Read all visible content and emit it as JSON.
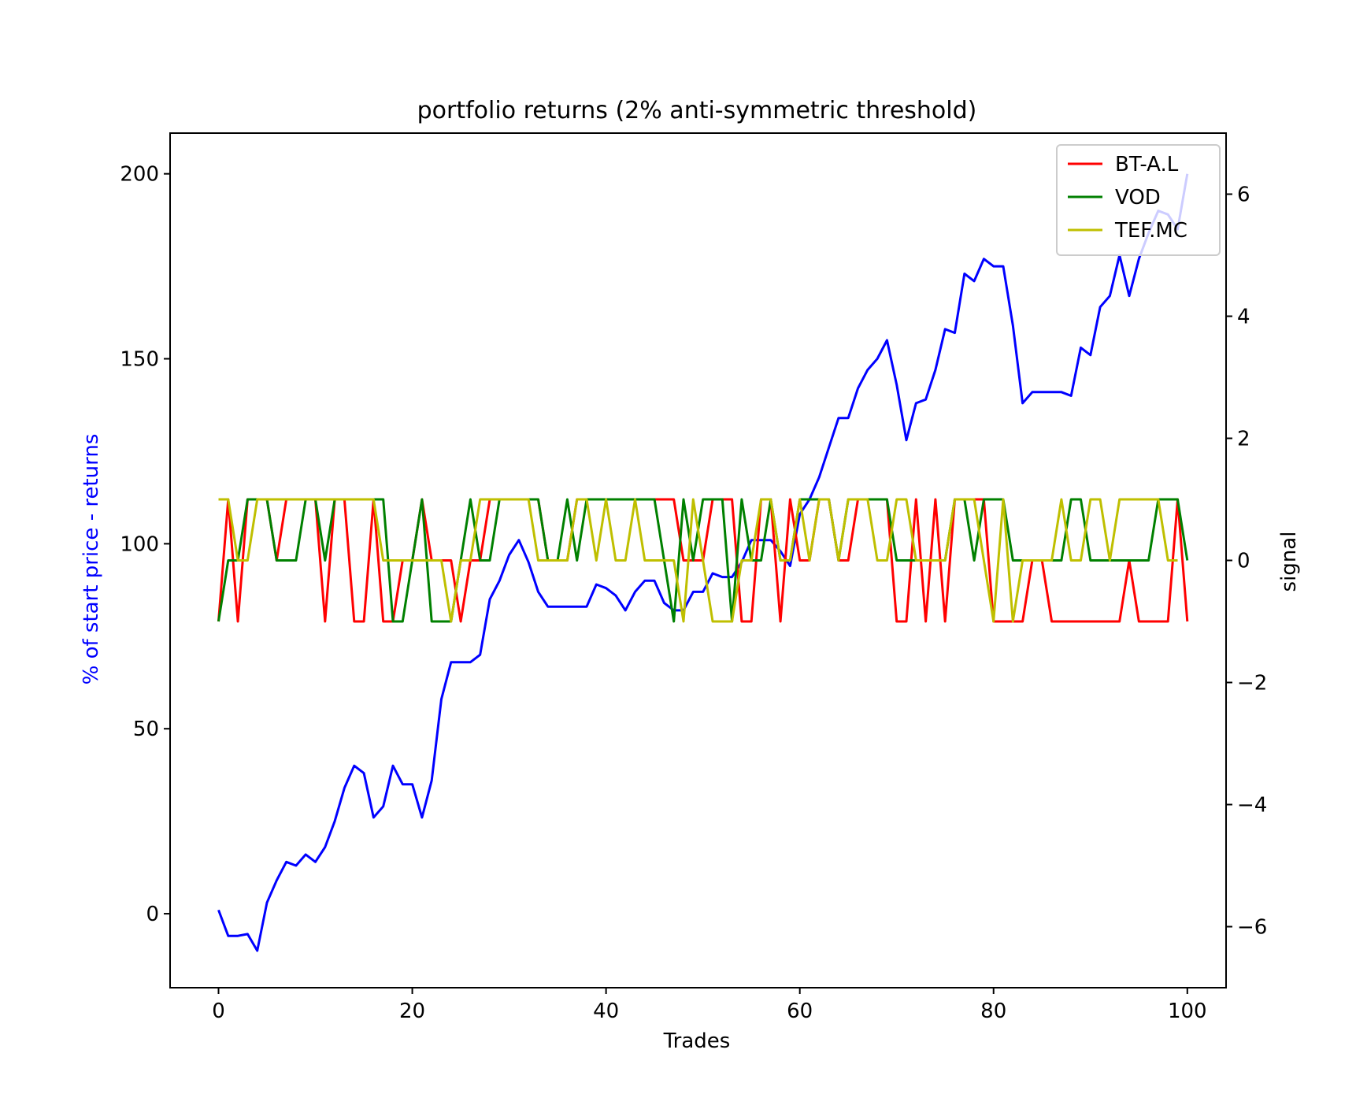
{
  "chart_data": {
    "type": "line",
    "title": "portfolio returns (2% anti-symmetric threshold)",
    "xlabel": "Trades",
    "ylabel_left": "% of start price - returns",
    "ylabel_right": "signal",
    "xlim": [
      -5,
      104
    ],
    "ylim_left": [
      -20,
      211
    ],
    "ylim_right": [
      -7,
      7
    ],
    "xticks": [
      0,
      20,
      40,
      60,
      80,
      100
    ],
    "yticks_left": [
      0,
      50,
      100,
      150,
      200
    ],
    "yticks_right": [
      -6,
      -4,
      -2,
      0,
      2,
      4,
      6
    ],
    "ytick_labels_right": [
      "−6",
      "−4",
      "−2",
      "0",
      "2",
      "4",
      "6"
    ],
    "grid": false,
    "legend_position": "upper right",
    "colors": {
      "returns": "#0000ff",
      "ylabel_left": "#0000ff",
      "axes": "#000000",
      "background": "#ffffff"
    },
    "returns": {
      "axis": "left",
      "color": "#0000ff",
      "values": [
        1,
        -6,
        -6,
        -5.5,
        -10,
        3,
        9,
        14,
        13,
        16,
        14,
        18,
        25,
        34,
        40,
        38,
        26,
        29,
        40,
        35,
        35,
        26,
        36,
        58,
        68,
        68,
        68,
        70,
        85,
        90,
        97,
        101,
        95,
        87,
        83,
        83,
        83,
        83,
        83,
        89,
        88,
        86,
        82,
        87,
        90,
        90,
        84,
        82,
        82,
        87,
        87,
        92,
        91,
        91,
        95,
        101,
        101,
        101,
        98,
        94,
        108,
        112,
        118,
        126,
        134,
        134,
        142,
        147,
        150,
        155,
        143,
        128,
        138,
        139,
        147,
        158,
        157,
        173,
        171,
        177,
        175,
        175,
        159,
        138,
        141,
        141,
        141,
        141,
        140,
        153,
        151,
        164,
        167,
        178,
        167,
        177,
        184,
        190,
        189,
        185,
        200
      ]
    },
    "series": [
      {
        "name": "BT-A.L",
        "axis": "right",
        "color": "#ff0000",
        "values": [
          -1,
          1,
          -1,
          1,
          1,
          1,
          0,
          1,
          1,
          1,
          1,
          -1,
          1,
          1,
          -1,
          -1,
          1,
          -1,
          -1,
          0,
          0,
          1,
          0,
          0,
          0,
          -1,
          0,
          0,
          1,
          1,
          1,
          1,
          1,
          1,
          0,
          0,
          0,
          1,
          1,
          1,
          1,
          1,
          1,
          1,
          1,
          1,
          1,
          1,
          0,
          0,
          0,
          1,
          1,
          1,
          -1,
          -1,
          1,
          1,
          -1,
          1,
          0,
          0,
          1,
          1,
          0,
          0,
          1,
          1,
          1,
          1,
          -1,
          -1,
          1,
          -1,
          1,
          -1,
          1,
          1,
          1,
          1,
          -1,
          -1,
          -1,
          -1,
          0,
          0,
          -1,
          -1,
          -1,
          -1,
          -1,
          -1,
          -1,
          -1,
          0,
          -1,
          -1,
          -1,
          -1,
          1,
          -1
        ]
      },
      {
        "name": "VOD",
        "axis": "right",
        "color": "#008000",
        "values": [
          -1,
          0,
          0,
          1,
          1,
          1,
          0,
          0,
          0,
          1,
          1,
          0,
          1,
          1,
          1,
          1,
          1,
          1,
          -1,
          -1,
          0,
          1,
          -1,
          -1,
          -1,
          0,
          1,
          0,
          0,
          1,
          1,
          1,
          1,
          1,
          0,
          0,
          1,
          0,
          1,
          1,
          1,
          1,
          1,
          1,
          1,
          1,
          0,
          -1,
          1,
          0,
          1,
          1,
          1,
          -1,
          1,
          0,
          0,
          1,
          0,
          0,
          1,
          1,
          1,
          1,
          0,
          1,
          1,
          1,
          1,
          1,
          0,
          0,
          0,
          0,
          0,
          0,
          1,
          1,
          0,
          1,
          1,
          1,
          0,
          0,
          0,
          0,
          0,
          0,
          1,
          1,
          0,
          0,
          0,
          0,
          0,
          0,
          0,
          1,
          1,
          1,
          0
        ]
      },
      {
        "name": "TEF.MC",
        "axis": "right",
        "color": "#bfbf00",
        "values": [
          1,
          1,
          0,
          0,
          1,
          1,
          1,
          1,
          1,
          1,
          1,
          1,
          1,
          1,
          1,
          1,
          1,
          0,
          0,
          0,
          0,
          0,
          0,
          0,
          -1,
          0,
          0,
          1,
          1,
          1,
          1,
          1,
          1,
          0,
          0,
          0,
          0,
          1,
          1,
          0,
          1,
          0,
          0,
          1,
          0,
          0,
          0,
          0,
          -1,
          1,
          0,
          -1,
          -1,
          -1,
          0,
          0,
          1,
          1,
          0,
          0,
          1,
          0,
          1,
          1,
          0,
          1,
          1,
          1,
          0,
          0,
          1,
          1,
          0,
          0,
          0,
          0,
          1,
          1,
          1,
          0,
          -1,
          1,
          -1,
          0,
          0,
          0,
          0,
          1,
          0,
          0,
          1,
          1,
          0,
          1,
          1,
          1,
          1,
          1,
          0,
          0
        ]
      }
    ]
  }
}
